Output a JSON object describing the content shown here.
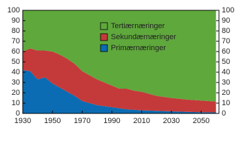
{
  "chart_data": {
    "type": "stacked_area",
    "x": [
      1930,
      1935,
      1940,
      1945,
      1950,
      1955,
      1960,
      1965,
      1970,
      1975,
      1980,
      1985,
      1990,
      1995,
      2000,
      2005,
      2010,
      2020,
      2030,
      2040,
      2050,
      2060
    ],
    "series": [
      {
        "name": "Primærnæringer",
        "color": "#0b6cb3",
        "values": [
          42,
          41,
          33,
          35,
          29,
          25,
          21,
          17,
          12,
          10,
          8,
          7,
          6,
          5,
          4,
          3.5,
          3,
          2.5,
          2,
          1.5,
          1.2,
          1
        ]
      },
      {
        "name": "Sekundærnæringer",
        "color": "#c43a3a",
        "values": [
          18,
          22,
          28,
          26,
          31,
          32,
          32,
          31,
          29,
          27,
          25,
          23,
          21,
          19,
          20,
          18.5,
          18,
          14.5,
          13,
          12,
          11.3,
          10.5
        ]
      },
      {
        "name": "Tertiærnæringer",
        "color": "#5fa83c",
        "values": [
          40,
          37,
          39,
          39,
          40,
          43,
          47,
          52,
          59,
          63,
          67,
          70,
          73,
          76,
          76,
          78,
          79,
          83,
          85,
          86.5,
          87.5,
          88.5
        ]
      }
    ],
    "legend_order": [
      2,
      1,
      0
    ],
    "xlim": [
      1930,
      2062
    ],
    "xticks": [
      1930,
      1950,
      1970,
      1990,
      2010,
      2030,
      2050
    ],
    "ylim": [
      0,
      100
    ],
    "yticks": [
      0,
      10,
      20,
      30,
      40,
      50,
      60,
      70,
      80,
      90,
      100
    ]
  }
}
